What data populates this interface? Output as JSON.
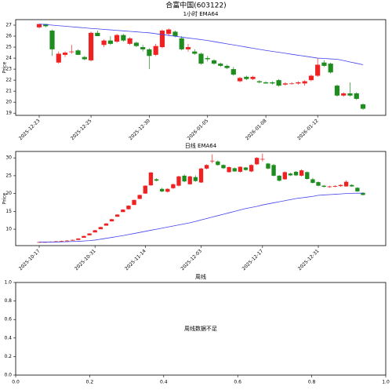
{
  "title": "合富中国(603122)",
  "chart_data": [
    {
      "type": "candlestick",
      "title": "1小时 EMA64",
      "ylabel": "Price",
      "categories": [
        "2025-12-23",
        null,
        null,
        null,
        null,
        null,
        null,
        null,
        "2025-12-25",
        null,
        null,
        null,
        null,
        null,
        null,
        null,
        null,
        "2025-12-30",
        null,
        null,
        null,
        null,
        null,
        null,
        null,
        null,
        "2026-01-05",
        null,
        null,
        null,
        null,
        null,
        null,
        null,
        null,
        "2026-01-08",
        null,
        null,
        null,
        null,
        null,
        null,
        null,
        "2026-01-12",
        null,
        null,
        null,
        null,
        null,
        null,
        null
      ],
      "open": [
        26.8,
        27.1,
        26.5,
        23.6,
        24.3,
        24.6,
        24.7,
        24.1,
        23.8,
        26.3,
        25.2,
        25.6,
        25.5,
        26.1,
        25.3,
        25.4,
        25.0,
        24.8,
        24.3,
        25.0,
        26.2,
        26.4,
        25.8,
        24.8,
        24.6,
        24.4,
        24.0,
        23.8,
        23.5,
        23.3,
        23.0,
        21.9,
        22.3,
        22.1,
        21.9,
        21.8,
        21.8,
        22.0,
        21.6,
        21.7,
        21.7,
        21.7,
        22.0,
        22.4,
        23.6,
        23.5,
        21.5,
        20.6,
        20.8,
        20.8,
        19.8
      ],
      "high": [
        27.1,
        27.1,
        26.6,
        24.6,
        24.6,
        25.2,
        24.8,
        24.2,
        26.4,
        26.5,
        25.7,
        26.0,
        26.2,
        26.2,
        25.9,
        25.5,
        25.2,
        24.9,
        25.3,
        26.6,
        26.7,
        26.5,
        26.0,
        25.3,
        24.8,
        24.5,
        24.2,
        23.9,
        23.6,
        23.4,
        23.2,
        22.3,
        22.4,
        22.4,
        22.0,
        21.9,
        21.9,
        22.1,
        21.8,
        21.8,
        21.9,
        22.0,
        22.5,
        24.0,
        23.8,
        23.6,
        21.6,
        20.9,
        21.8,
        20.9,
        19.9
      ],
      "low": [
        26.7,
        26.8,
        24.2,
        23.5,
        24.1,
        24.4,
        24.3,
        23.8,
        23.7,
        26.0,
        25.0,
        25.2,
        25.4,
        25.5,
        25.2,
        25.0,
        24.6,
        23.0,
        24.2,
        24.9,
        26.0,
        25.9,
        24.7,
        24.6,
        24.3,
        23.4,
        23.7,
        23.4,
        23.2,
        23.0,
        22.4,
        21.8,
        22.0,
        22.0,
        21.7,
        21.7,
        21.6,
        21.4,
        21.5,
        21.6,
        21.6,
        21.5,
        21.9,
        22.3,
        23.2,
        22.6,
        20.5,
        20.5,
        20.5,
        20.2,
        19.3
      ],
      "close": [
        27.1,
        26.9,
        24.8,
        24.4,
        24.5,
        24.6,
        24.3,
        23.9,
        26.3,
        26.0,
        25.6,
        25.3,
        26.1,
        25.6,
        25.8,
        25.1,
        24.8,
        24.2,
        25.1,
        26.5,
        26.6,
        26.0,
        24.8,
        25.0,
        24.4,
        23.5,
        23.9,
        23.5,
        23.3,
        23.1,
        22.5,
        22.2,
        22.1,
        22.3,
        21.8,
        21.7,
        21.7,
        21.5,
        21.7,
        21.7,
        21.8,
        21.9,
        22.4,
        23.4,
        23.3,
        22.7,
        20.6,
        20.8,
        20.6,
        20.3,
        19.4
      ],
      "up_color": "#ee2222",
      "down_color": "#1e8c1e",
      "ema": {
        "color": "#4444ee",
        "values": [
          27.1,
          27.05,
          27.0,
          26.95,
          26.9,
          26.85,
          26.8,
          26.75,
          26.7,
          26.66,
          26.61,
          26.57,
          26.52,
          26.48,
          26.43,
          26.39,
          26.34,
          26.3,
          26.22,
          26.14,
          26.07,
          25.99,
          25.91,
          25.83,
          25.76,
          25.68,
          25.6,
          25.5,
          25.4,
          25.3,
          25.2,
          25.1,
          25.0,
          24.9,
          24.8,
          24.7,
          24.61,
          24.53,
          24.44,
          24.35,
          24.26,
          24.18,
          24.09,
          24.0,
          23.97,
          23.93,
          23.9,
          23.78,
          23.65,
          23.53,
          23.4
        ]
      },
      "ylim": [
        18.8,
        27.5
      ],
      "yticks": [
        19,
        20,
        21,
        22,
        23,
        24,
        25,
        26,
        27
      ]
    },
    {
      "type": "candlestick",
      "title": "日线 EMA64",
      "ylabel": "Price",
      "categories": [
        "2025-10-17",
        null,
        null,
        null,
        null,
        null,
        null,
        null,
        null,
        null,
        "2025-10-31",
        null,
        null,
        null,
        null,
        null,
        null,
        null,
        null,
        "2025-11-14",
        null,
        null,
        null,
        null,
        null,
        null,
        null,
        null,
        null,
        "2025-12-03",
        null,
        null,
        null,
        null,
        null,
        null,
        null,
        null,
        null,
        null,
        "2025-12-17",
        null,
        null,
        null,
        null,
        null,
        null,
        null,
        null,
        null,
        "2025-12-31",
        null,
        null,
        null,
        null,
        null,
        null,
        null,
        null
      ],
      "open": [
        6.3,
        6.4,
        6.4,
        6.5,
        6.6,
        6.7,
        6.8,
        7.0,
        7.6,
        8.3,
        9.1,
        10.0,
        11.0,
        12.2,
        13.5,
        14.8,
        15.6,
        16.8,
        18.5,
        20.0,
        22.3,
        24.0,
        21.3,
        20.5,
        21.5,
        22.2,
        25.0,
        22.6,
        24.6,
        23.1,
        27.0,
        29.1,
        29.0,
        28.0,
        26.0,
        27.1,
        26.1,
        27.3,
        26.2,
        28.2,
        29.6,
        28.4,
        28.0,
        25.0,
        24.0,
        25.6,
        26.1,
        25.0,
        26.0,
        24.0,
        23.2,
        22.2,
        21.8,
        21.9,
        22.1,
        22.0,
        22.4,
        21.6,
        20.2
      ],
      "high": [
        6.5,
        6.5,
        6.6,
        6.7,
        6.8,
        6.9,
        7.1,
        7.5,
        8.2,
        8.9,
        9.8,
        10.7,
        11.7,
        12.9,
        14.2,
        15.6,
        16.7,
        18.3,
        19.7,
        22.3,
        26.0,
        24.3,
        21.6,
        21.5,
        22.8,
        25.0,
        25.4,
        25.0,
        25.1,
        27.2,
        28.2,
        31.0,
        29.3,
        28.2,
        27.6,
        27.3,
        27.6,
        27.4,
        28.2,
        30.2,
        31.2,
        28.6,
        28.3,
        25.2,
        26.2,
        25.9,
        26.3,
        26.8,
        26.2,
        24.4,
        23.4,
        22.4,
        22.2,
        22.3,
        22.6,
        23.7,
        22.6,
        21.8,
        20.3
      ],
      "low": [
        6.3,
        6.3,
        6.4,
        6.4,
        6.5,
        6.6,
        6.8,
        7.0,
        7.6,
        8.3,
        9.1,
        10.0,
        11.0,
        12.2,
        13.5,
        14.8,
        15.5,
        16.8,
        18.4,
        19.9,
        22.2,
        23.4,
        20.4,
        20.3,
        21.3,
        22.0,
        23.2,
        22.5,
        23.3,
        23.0,
        26.8,
        28.5,
        27.8,
        26.9,
        25.9,
        26.1,
        25.9,
        26.4,
        26.0,
        28.0,
        29.0,
        26.8,
        24.8,
        23.4,
        23.9,
        24.9,
        24.9,
        24.8,
        23.9,
        22.8,
        22.0,
        21.7,
        21.6,
        21.8,
        21.9,
        21.9,
        21.9,
        20.5,
        19.5
      ],
      "close": [
        6.4,
        6.4,
        6.5,
        6.6,
        6.7,
        6.8,
        7.0,
        7.4,
        8.1,
        8.8,
        9.7,
        10.6,
        11.6,
        12.8,
        14.1,
        15.5,
        16.6,
        18.2,
        19.6,
        22.2,
        25.9,
        23.6,
        20.6,
        21.3,
        22.6,
        24.8,
        23.4,
        24.8,
        23.5,
        27.0,
        28.0,
        29.2,
        28.0,
        27.1,
        27.4,
        26.2,
        27.5,
        26.6,
        28.0,
        30.0,
        29.7,
        27.0,
        25.0,
        23.6,
        26.0,
        25.1,
        25.1,
        26.5,
        24.1,
        23.0,
        22.2,
        21.9,
        22.0,
        22.1,
        22.4,
        23.3,
        22.0,
        20.6,
        19.6
      ],
      "up_color": "#ee2222",
      "down_color": "#1e8c1e",
      "ema": {
        "color": "#4444ee",
        "values": [
          6.4,
          6.4,
          6.4,
          6.4,
          6.45,
          6.5,
          6.55,
          6.6,
          6.7,
          6.8,
          6.95,
          7.2,
          7.45,
          7.7,
          7.95,
          8.2,
          8.5,
          8.8,
          9.1,
          9.4,
          9.7,
          10.0,
          10.3,
          10.6,
          10.9,
          11.2,
          11.5,
          11.8,
          12.2,
          12.6,
          13.0,
          13.4,
          13.8,
          14.2,
          14.6,
          15.0,
          15.4,
          15.8,
          16.1,
          16.4,
          16.8,
          17.1,
          17.4,
          17.7,
          18.0,
          18.3,
          18.6,
          18.8,
          19.0,
          19.2,
          19.5,
          19.6,
          19.7,
          19.8,
          19.9,
          20.0,
          20.05,
          20.1,
          20.1
        ]
      },
      "ylim": [
        5.4,
        31.8
      ],
      "yticks": [
        10,
        15,
        20,
        25,
        30
      ]
    },
    {
      "type": "empty",
      "title": "周线",
      "annotation": "周线数据不足",
      "xlim": [
        0,
        1
      ],
      "ylim": [
        0,
        1
      ],
      "xticks": [
        {
          "value": 0,
          "label": "0.0"
        },
        {
          "value": 0.2,
          "label": "0.2"
        },
        {
          "value": 0.4,
          "label": "0.4"
        },
        {
          "value": 0.6,
          "label": "0.6"
        },
        {
          "value": 0.8,
          "label": "0.8"
        },
        {
          "value": 1,
          "label": "1.0"
        }
      ],
      "yticks": [
        {
          "value": 0,
          "label": "0.0"
        },
        {
          "value": 0.2,
          "label": "0.2"
        },
        {
          "value": 0.4,
          "label": "0.4"
        },
        {
          "value": 0.6,
          "label": "0.6"
        },
        {
          "value": 0.8,
          "label": "0.8"
        },
        {
          "value": 1,
          "label": "1.0"
        }
      ]
    }
  ]
}
